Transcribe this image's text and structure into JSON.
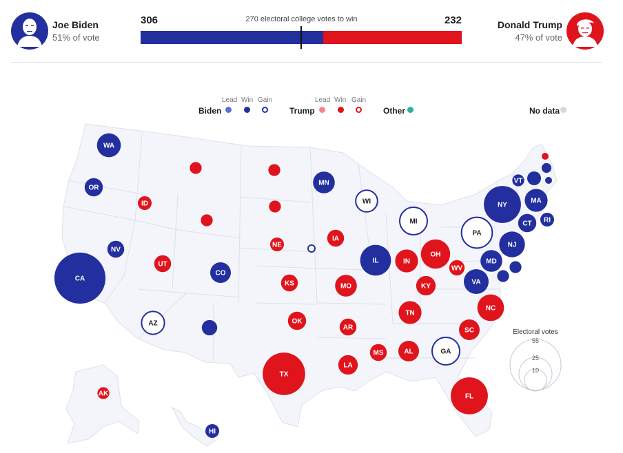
{
  "header": {
    "biden": {
      "name": "Joe Biden",
      "pct": "51% of vote",
      "votes": "306"
    },
    "trump": {
      "name": "Donald Trump",
      "pct": "47% of vote",
      "votes": "232"
    },
    "win_label": "270 electoral college votes to win",
    "bar": {
      "total": 538,
      "biden": 306,
      "threshold": 270
    }
  },
  "colors": {
    "biden_lead": "#5a6fd6",
    "biden_win": "#232f9e",
    "trump_lead": "#f0888c",
    "trump_win": "#e0141c",
    "other": "#2ab3a0",
    "no_data": "#d6d8e2",
    "land": "#f4f5fb",
    "border": "#dde0ea"
  },
  "legend": {
    "biden": "Biden",
    "trump": "Trump",
    "other": "Other",
    "no_data": "No data",
    "lead": "Lead",
    "win": "Win",
    "gain": "Gain"
  },
  "electoral_key": {
    "title": "Electoral votes",
    "values": [
      "55",
      "25",
      "10"
    ]
  },
  "states": [
    {
      "label": "WA",
      "votes": 12,
      "party": "biden",
      "status": "win"
    },
    {
      "label": "OR",
      "votes": 7,
      "party": "biden",
      "status": "win"
    },
    {
      "label": "CA",
      "votes": 55,
      "party": "biden",
      "status": "win"
    },
    {
      "label": "NV",
      "votes": 6,
      "party": "biden",
      "status": "win"
    },
    {
      "label": "ID",
      "votes": 4,
      "party": "trump",
      "status": "win"
    },
    {
      "label": "",
      "votes": 3,
      "party": "trump",
      "status": "win"
    },
    {
      "label": "",
      "votes": 3,
      "party": "trump",
      "status": "win"
    },
    {
      "label": "UT",
      "votes": 6,
      "party": "trump",
      "status": "win"
    },
    {
      "label": "CO",
      "votes": 9,
      "party": "biden",
      "status": "win"
    },
    {
      "label": "AZ",
      "votes": 11,
      "party": "biden",
      "status": "gain"
    },
    {
      "label": "",
      "votes": 5,
      "party": "biden",
      "status": "win"
    },
    {
      "label": "",
      "votes": 3,
      "party": "trump",
      "status": "win"
    },
    {
      "label": "",
      "votes": 3,
      "party": "trump",
      "status": "win"
    },
    {
      "label": "NE",
      "votes": 4,
      "party": "trump",
      "status": "win"
    },
    {
      "label": "",
      "votes": 1,
      "party": "biden",
      "status": "gain"
    },
    {
      "label": "KS",
      "votes": 6,
      "party": "trump",
      "status": "win"
    },
    {
      "label": "OK",
      "votes": 7,
      "party": "trump",
      "status": "win"
    },
    {
      "label": "TX",
      "votes": 38,
      "party": "trump",
      "status": "win"
    },
    {
      "label": "MN",
      "votes": 10,
      "party": "biden",
      "status": "win"
    },
    {
      "label": "IA",
      "votes": 6,
      "party": "trump",
      "status": "win"
    },
    {
      "label": "MO",
      "votes": 10,
      "party": "trump",
      "status": "win"
    },
    {
      "label": "AR",
      "votes": 6,
      "party": "trump",
      "status": "win"
    },
    {
      "label": "LA",
      "votes": 8,
      "party": "trump",
      "status": "win"
    },
    {
      "label": "WI",
      "votes": 10,
      "party": "biden",
      "status": "gain"
    },
    {
      "label": "IL",
      "votes": 20,
      "party": "biden",
      "status": "win"
    },
    {
      "label": "MI",
      "votes": 16,
      "party": "biden",
      "status": "gain"
    },
    {
      "label": "IN",
      "votes": 11,
      "party": "trump",
      "status": "win"
    },
    {
      "label": "OH",
      "votes": 18,
      "party": "trump",
      "status": "win"
    },
    {
      "label": "KY",
      "votes": 8,
      "party": "trump",
      "status": "win"
    },
    {
      "label": "TN",
      "votes": 11,
      "party": "trump",
      "status": "win"
    },
    {
      "label": "MS",
      "votes": 6,
      "party": "trump",
      "status": "win"
    },
    {
      "label": "AL",
      "votes": 9,
      "party": "trump",
      "status": "win"
    },
    {
      "label": "GA",
      "votes": 16,
      "party": "biden",
      "status": "gain"
    },
    {
      "label": "FL",
      "votes": 29,
      "party": "trump",
      "status": "win"
    },
    {
      "label": "SC",
      "votes": 9,
      "party": "trump",
      "status": "win"
    },
    {
      "label": "NC",
      "votes": 15,
      "party": "trump",
      "status": "win"
    },
    {
      "label": "VA",
      "votes": 13,
      "party": "biden",
      "status": "win"
    },
    {
      "label": "WV",
      "votes": 5,
      "party": "trump",
      "status": "win"
    },
    {
      "label": "PA",
      "votes": 20,
      "party": "biden",
      "status": "gain"
    },
    {
      "label": "MD",
      "votes": 10,
      "party": "biden",
      "status": "win"
    },
    {
      "label": "",
      "votes": 3,
      "party": "biden",
      "status": "win"
    },
    {
      "label": "",
      "votes": 3,
      "party": "biden",
      "status": "win"
    },
    {
      "label": "NJ",
      "votes": 14,
      "party": "biden",
      "status": "win"
    },
    {
      "label": "NY",
      "votes": 29,
      "party": "biden",
      "status": "win"
    },
    {
      "label": "CT",
      "votes": 7,
      "party": "biden",
      "status": "win"
    },
    {
      "label": "RI",
      "votes": 4,
      "party": "biden",
      "status": "win"
    },
    {
      "label": "MA",
      "votes": 11,
      "party": "biden",
      "status": "win"
    },
    {
      "label": "VT",
      "votes": 3,
      "party": "biden",
      "status": "win"
    },
    {
      "label": "",
      "votes": 4,
      "party": "biden",
      "status": "win"
    },
    {
      "label": "",
      "votes": 2,
      "party": "biden",
      "status": "win"
    },
    {
      "label": "",
      "votes": 1,
      "party": "biden",
      "status": "win"
    },
    {
      "label": "",
      "votes": 1,
      "party": "trump",
      "status": "win"
    },
    {
      "label": "AK",
      "votes": 3,
      "party": "trump",
      "status": "win"
    },
    {
      "label": "HI",
      "votes": 4,
      "party": "biden",
      "status": "win"
    }
  ]
}
